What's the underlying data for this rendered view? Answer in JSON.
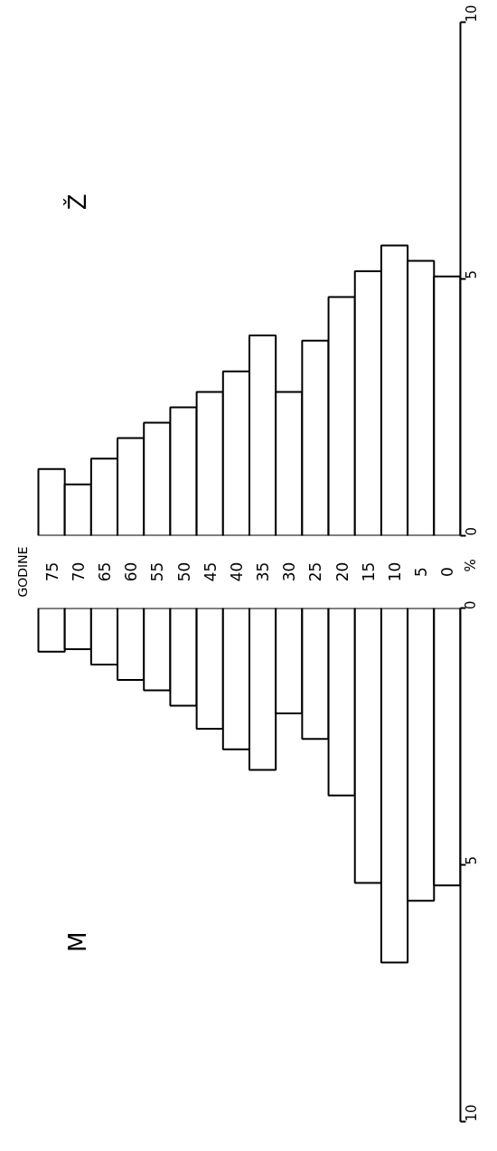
{
  "chart_data": [
    {
      "type": "bar",
      "categories": [
        "75",
        "70",
        "65",
        "60",
        "55",
        "50",
        "45",
        "40",
        "35",
        "30",
        "25",
        "20",
        "15",
        "10",
        "5",
        "0"
      ],
      "series": [
        {
          "name": "Ž",
          "values": [
            1.3,
            1.0,
            1.5,
            1.9,
            2.2,
            2.5,
            2.8,
            3.2,
            3.9,
            2.8,
            3.8,
            4.65,
            5.15,
            5.65,
            5.35,
            5.05
          ]
        }
      ],
      "ylim": [
        0,
        10
      ],
      "yticks": [
        0,
        5,
        10
      ],
      "grid": false,
      "annotations": [
        "GODINE",
        "%"
      ]
    },
    {
      "type": "bar",
      "categories": [
        "75",
        "70",
        "65",
        "60",
        "55",
        "50",
        "45",
        "40",
        "35",
        "30",
        "25",
        "20",
        "15",
        "10",
        "5",
        "0"
      ],
      "series": [
        {
          "name": "M",
          "values": [
            0.85,
            0.8,
            1.1,
            1.4,
            1.6,
            1.9,
            2.35,
            2.75,
            3.15,
            2.05,
            2.55,
            3.65,
            5.35,
            6.9,
            5.7,
            5.4
          ]
        }
      ],
      "ylim": [
        10,
        0
      ],
      "yticks": [
        0,
        5,
        10
      ],
      "grid": false,
      "tick_labels": "y"
    }
  ]
}
